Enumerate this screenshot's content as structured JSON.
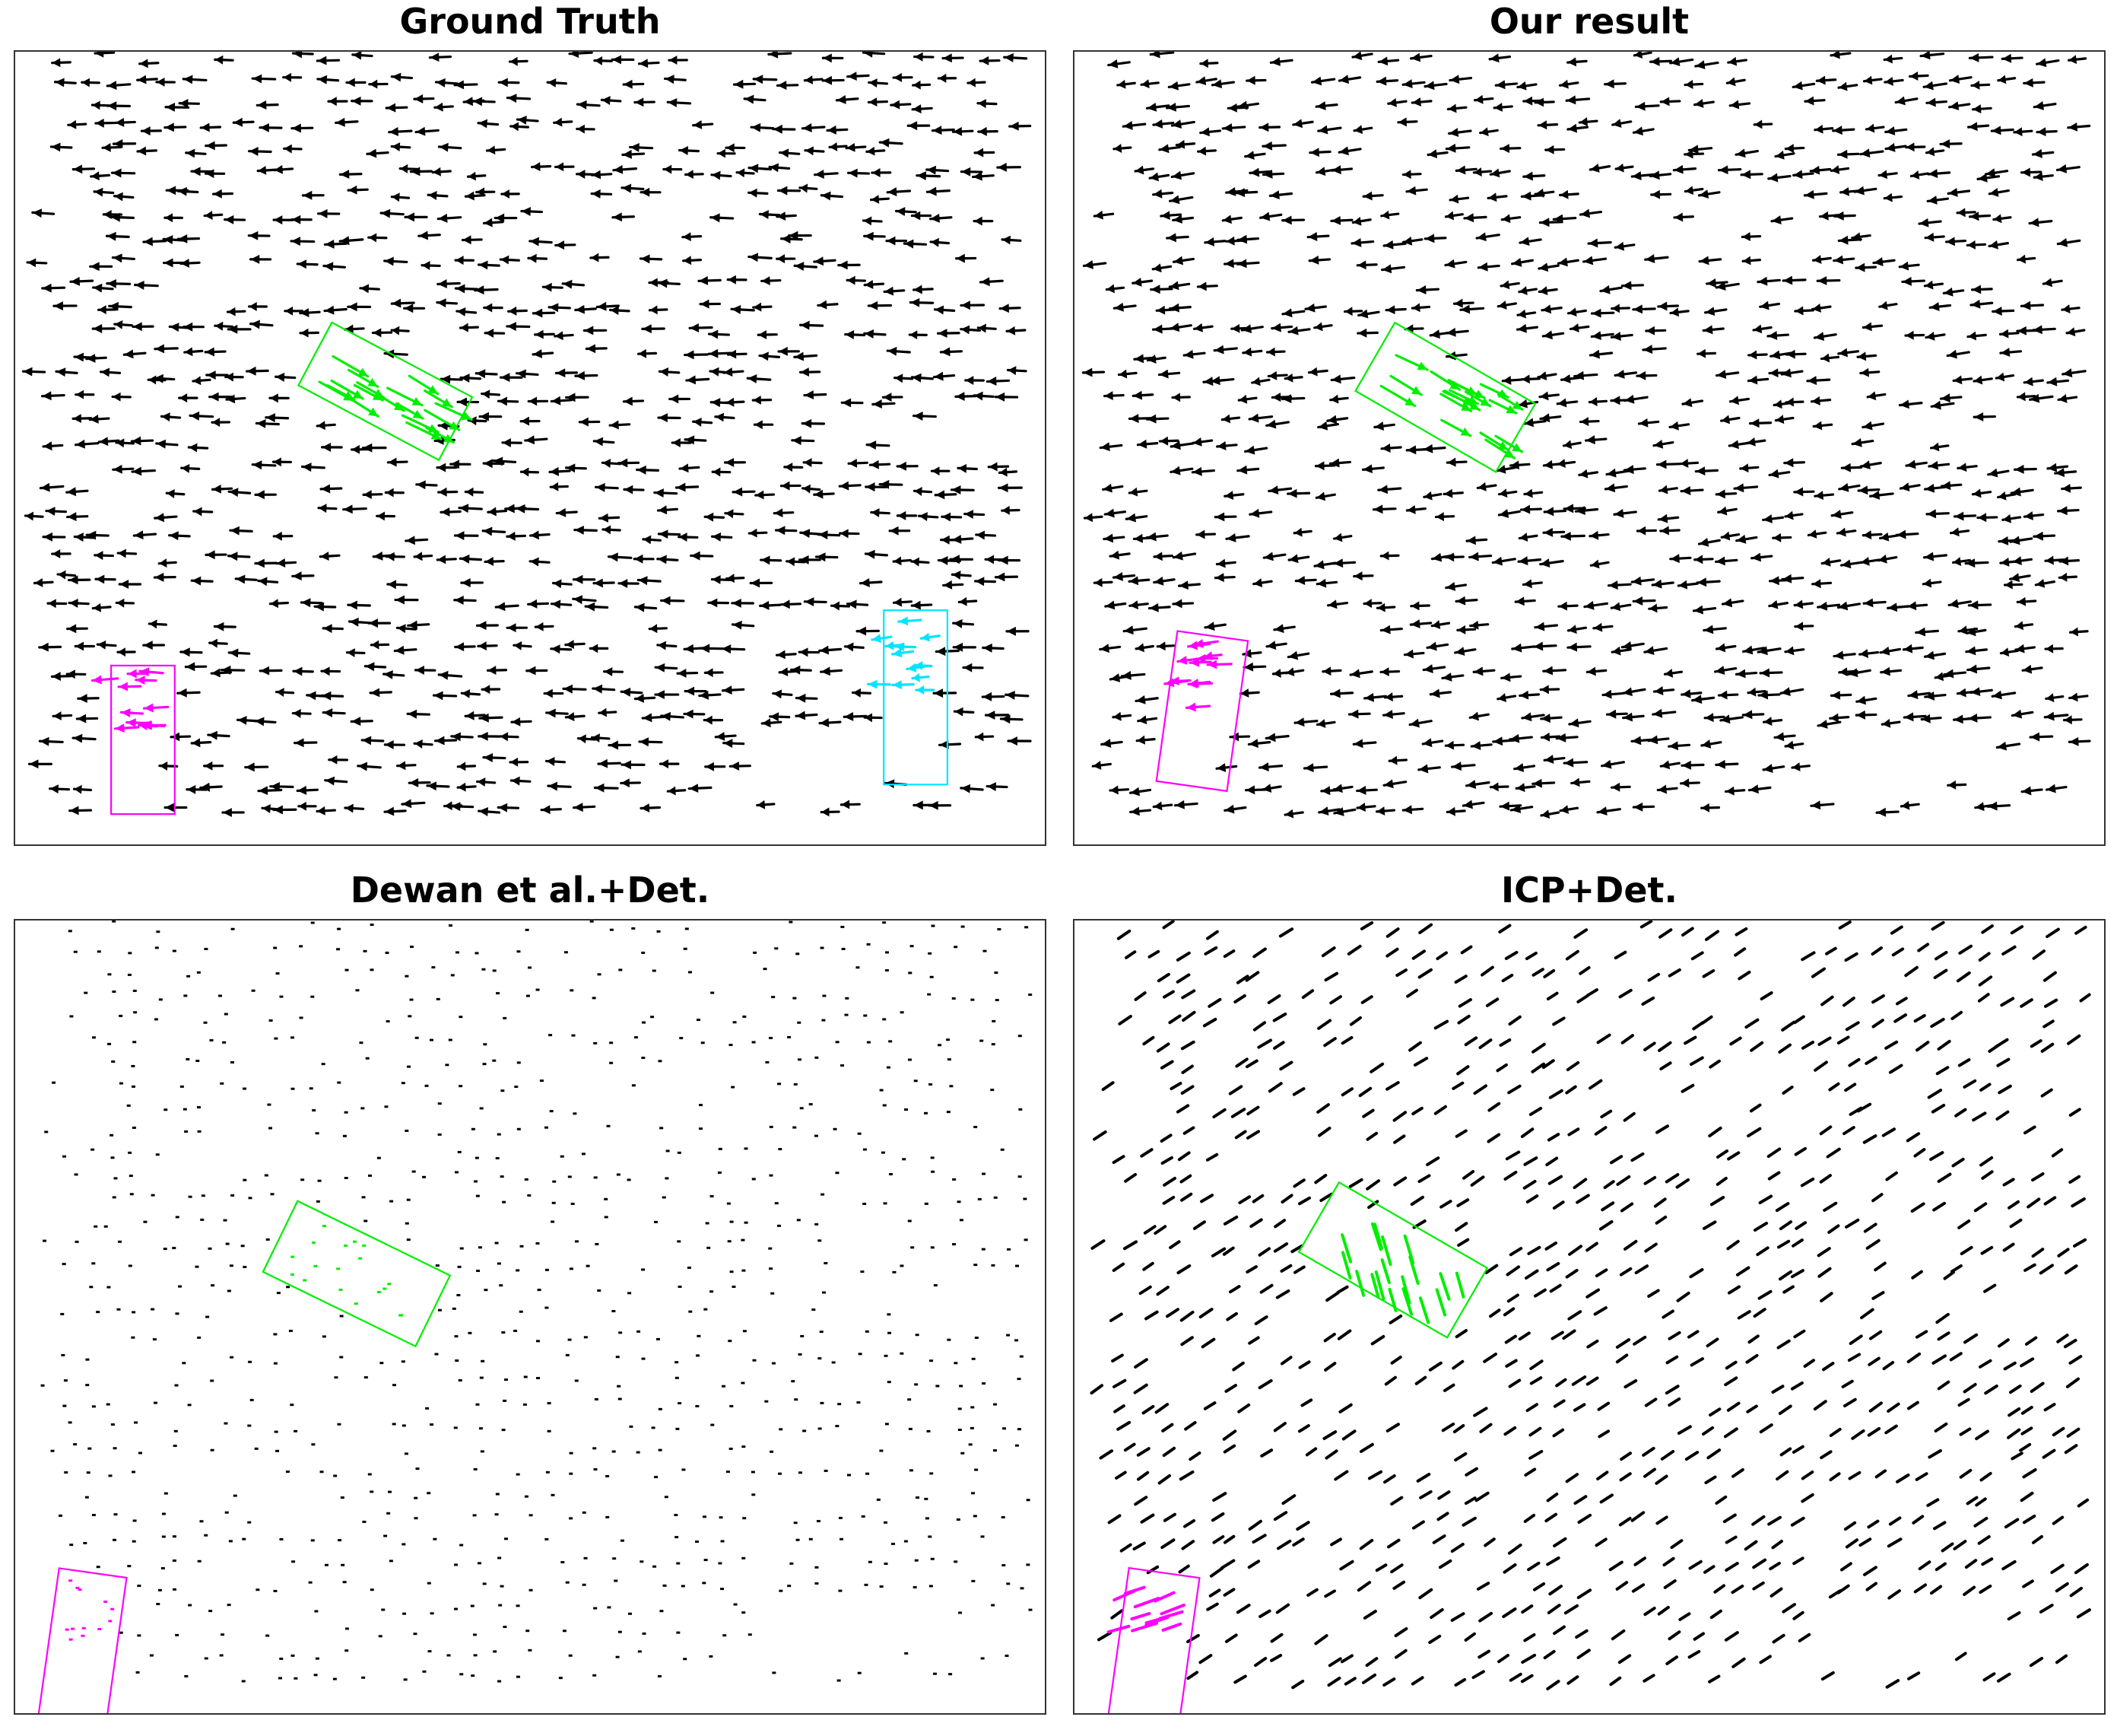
{
  "figure": {
    "colors": {
      "background": "#ffffff",
      "frame": "#333333",
      "static_arrows": "#000000",
      "object_green": "#00ee00",
      "object_magenta": "#ff00ff",
      "object_cyan": "#00e5ff"
    },
    "note_glyph": "arrow"
  },
  "chart_data": [
    {
      "type": "quiver",
      "title": "Ground Truth",
      "arrow_style": "arrow",
      "axes_ticks": false,
      "background_flow": {
        "dx": -1.0,
        "dy": 0.0,
        "arrow_length": 26
      },
      "objects": [
        {
          "color": "#00ee00",
          "flow": {
            "dx": 1.0,
            "dy": 0.55
          },
          "arrow_length": 48
        },
        {
          "color": "#ff00ff",
          "flow": {
            "dx": -1.0,
            "dy": 0.0
          },
          "arrow_length": 30
        },
        {
          "color": "#00e5ff",
          "flow": {
            "dx": -1.0,
            "dy": 0.05
          },
          "arrow_length": 26
        }
      ]
    },
    {
      "type": "quiver",
      "title": "Our result",
      "arrow_style": "arrow",
      "axes_ticks": false,
      "background_flow": {
        "dx": -1.0,
        "dy": 0.1,
        "arrow_length": 26
      },
      "objects": [
        {
          "color": "#00ee00",
          "flow": {
            "dx": 1.0,
            "dy": 0.55
          },
          "arrow_length": 46
        },
        {
          "color": "#ff00ff",
          "flow": {
            "dx": -1.0,
            "dy": 0.05
          },
          "arrow_length": 28
        }
      ]
    },
    {
      "type": "quiver",
      "title": "Dewan et al.+Det.",
      "arrow_style": "dot",
      "axes_ticks": false,
      "background_flow": {
        "dx": -1.0,
        "dy": 0.0,
        "arrow_length": 4
      },
      "objects": [
        {
          "color": "#00ee00",
          "flow": {
            "dx": 0.0,
            "dy": 0.0
          },
          "arrow_length": 3
        },
        {
          "color": "#ff00ff",
          "flow": {
            "dx": -1.0,
            "dy": 0.35
          },
          "arrow_length": 14
        }
      ]
    },
    {
      "type": "quiver",
      "title": "ICP+Det.",
      "arrow_style": "dash",
      "axes_ticks": false,
      "background_flow": {
        "dx": -1.0,
        "dy": 0.65,
        "arrow_length": 16
      },
      "objects": [
        {
          "color": "#00ee00",
          "flow": {
            "dx": 0.3,
            "dy": 1.0
          },
          "arrow_length": 36
        },
        {
          "color": "#ff00ff",
          "flow": {
            "dx": -1.0,
            "dy": 0.35
          },
          "arrow_length": 30
        }
      ]
    }
  ]
}
